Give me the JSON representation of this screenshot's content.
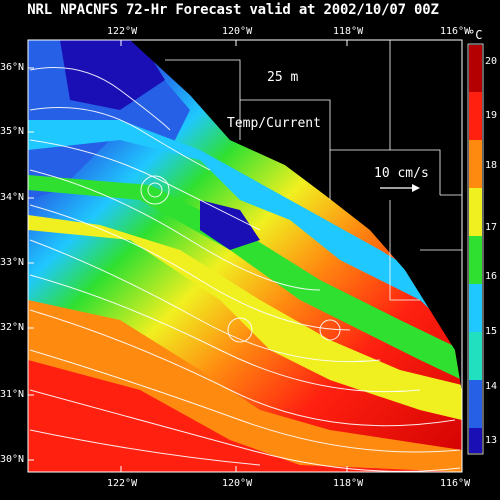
{
  "title": "NRL NPACNFS 72-Hr Forecast valid at 2002/10/07 00Z",
  "depth_label": "25 m",
  "field_label": "Temp/Current",
  "vector_scale_label": "10 cm/s",
  "colorbar_unit": "°C",
  "lon_ticks": [
    "122°W",
    "120°W",
    "118°W",
    "116°W"
  ],
  "lat_ticks": [
    "36°N",
    "35°N",
    "34°N",
    "33°N",
    "32°N",
    "31°N",
    "30°N"
  ],
  "colorbar_ticks": [
    "20",
    "19",
    "18",
    "17",
    "16",
    "15",
    "14",
    "13"
  ],
  "colors": {
    "background": "#000000",
    "land": "#000000",
    "c12": "#1a0fb4",
    "c13": "#2560e6",
    "c14": "#1fc8ff",
    "c15": "#20e0c0",
    "c16": "#2fe030",
    "c17": "#f0f020",
    "c18": "#ff8a10",
    "c19": "#ff2010",
    "c20": "#b40000"
  }
}
